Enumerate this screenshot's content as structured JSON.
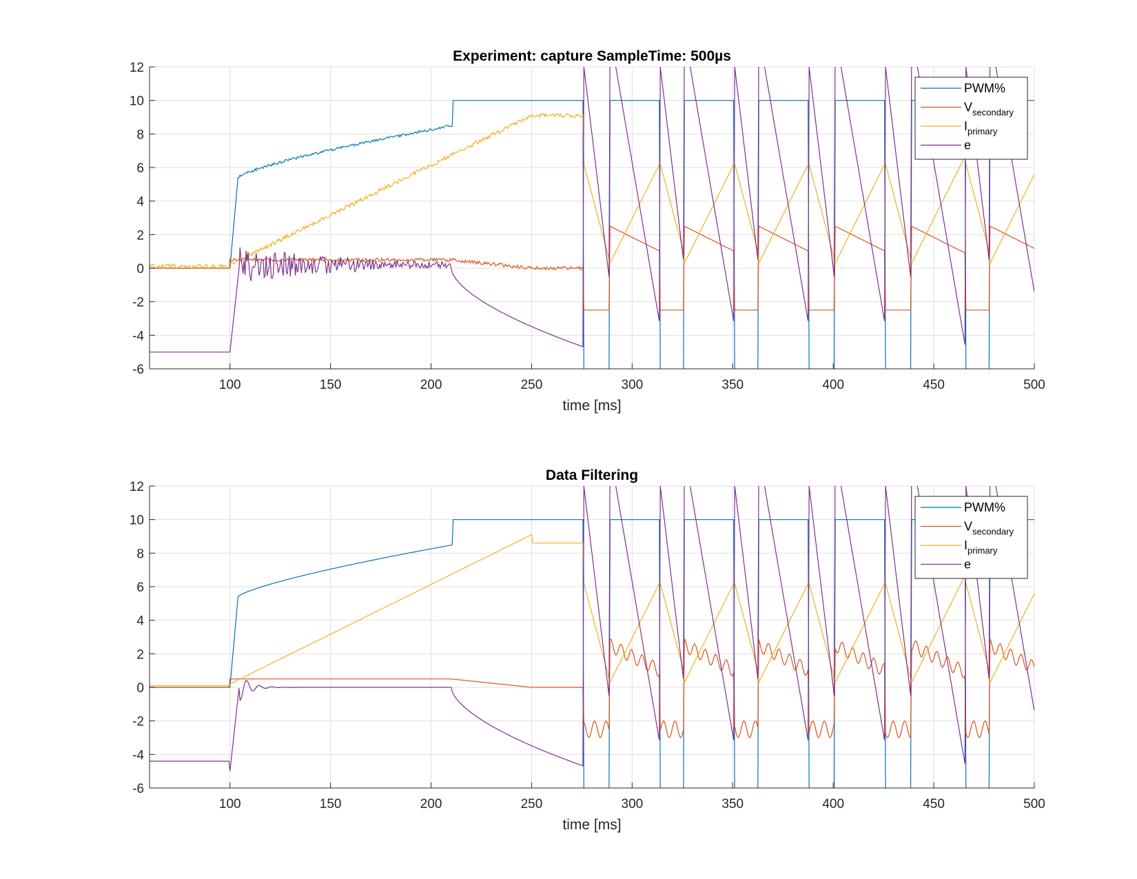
{
  "chart_data": [
    {
      "type": "line",
      "title": "Experiment: capture   SampleTime: 500µs",
      "xlabel": "time [ms]",
      "ylabel": "",
      "xlim": [
        60,
        500
      ],
      "ylim": [
        -6,
        12
      ],
      "xticks": [
        100,
        150,
        200,
        250,
        300,
        350,
        400,
        450,
        500
      ],
      "yticks": [
        -6,
        -4,
        -2,
        0,
        2,
        4,
        6,
        8,
        10,
        12
      ],
      "grid": true,
      "legend_position": "top-right",
      "filtered": false,
      "series": [
        {
          "name": "PWM%",
          "legend_main": "PWM%",
          "legend_sub": "",
          "color": "#0072BD"
        },
        {
          "name": "Vsecondary",
          "legend_main": "V",
          "legend_sub": "secondary",
          "color": "#D95319"
        },
        {
          "name": "Iprimary",
          "legend_main": "I",
          "legend_sub": "primary",
          "color": "#EDB120"
        },
        {
          "name": "e",
          "legend_main": "e",
          "legend_sub": "",
          "color": "#7E2F8E"
        }
      ]
    },
    {
      "type": "line",
      "title": "Data Filtering",
      "xlabel": "time [ms]",
      "ylabel": "",
      "xlim": [
        60,
        500
      ],
      "ylim": [
        -6,
        12
      ],
      "xticks": [
        100,
        150,
        200,
        250,
        300,
        350,
        400,
        450,
        500
      ],
      "yticks": [
        -6,
        -4,
        -2,
        0,
        2,
        4,
        6,
        8,
        10,
        12
      ],
      "grid": true,
      "legend_position": "top-right",
      "filtered": true,
      "series": [
        {
          "name": "PWM%",
          "legend_main": "PWM%",
          "legend_sub": "",
          "color": "#0072BD"
        },
        {
          "name": "Vsecondary",
          "legend_main": "V",
          "legend_sub": "secondary",
          "color": "#D95319"
        },
        {
          "name": "Iprimary",
          "legend_main": "I",
          "legend_sub": "primary",
          "color": "#EDB120"
        },
        {
          "name": "e",
          "legend_main": "e",
          "legend_sub": "",
          "color": "#7E2F8E"
        }
      ]
    }
  ]
}
